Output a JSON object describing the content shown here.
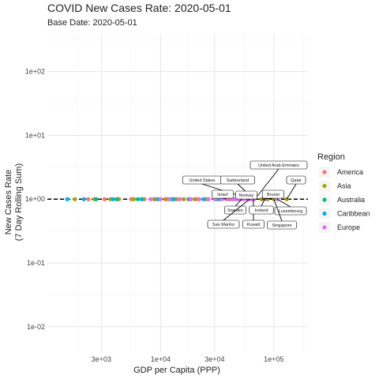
{
  "chart_data": {
    "type": "scatter",
    "title": "COVID New Cases Rate: 2020-05-01",
    "subtitle": "Base Date: 2020-05-01",
    "xlabel": "GDP per Capita (PPP)",
    "ylabel_lines": [
      "New Cases Rate",
      "(7 Day Rolling Sum)"
    ],
    "x_scale": "log",
    "y_scale": "log",
    "xlim": [
      1000,
      200000
    ],
    "ylim": [
      0.004,
      400
    ],
    "x_ticks": [
      {
        "value": 3000,
        "label": "3e+03"
      },
      {
        "value": 10000,
        "label": "1e+04"
      },
      {
        "value": 30000,
        "label": "3e+04"
      },
      {
        "value": 100000,
        "label": "1e+05"
      }
    ],
    "y_ticks": [
      {
        "value": 100,
        "label": "1e+02"
      },
      {
        "value": 10,
        "label": "1e+01"
      },
      {
        "value": 1,
        "label": "1e+00"
      },
      {
        "value": 0.1,
        "label": "1e-01"
      },
      {
        "value": 0.01,
        "label": "1e-02"
      }
    ],
    "grid": true,
    "reference_line": {
      "y": 1,
      "style": "dashed"
    },
    "legend": {
      "title": "Region",
      "position": "right",
      "items": [
        {
          "name": "America",
          "color": "#F8766D"
        },
        {
          "name": "Asia",
          "color": "#A3A500"
        },
        {
          "name": "Australia",
          "color": "#00BF7D"
        },
        {
          "name": "Caribbean",
          "color": "#00B0F6"
        },
        {
          "name": "Europe",
          "color": "#E76BF3"
        }
      ]
    },
    "series": [
      {
        "name": "America",
        "points": [
          {
            "x": 1500,
            "y": 1
          },
          {
            "x": 2300,
            "y": 1
          },
          {
            "x": 3200,
            "y": 1
          },
          {
            "x": 4300,
            "y": 1
          },
          {
            "x": 5500,
            "y": 1
          },
          {
            "x": 7200,
            "y": 1
          },
          {
            "x": 9000,
            "y": 1
          },
          {
            "x": 11500,
            "y": 1
          },
          {
            "x": 14000,
            "y": 1
          },
          {
            "x": 17500,
            "y": 1
          },
          {
            "x": 21000,
            "y": 1
          },
          {
            "x": 26000,
            "y": 1
          },
          {
            "x": 32000,
            "y": 1
          },
          {
            "x": 62000,
            "y": 1
          }
        ]
      },
      {
        "name": "Asia",
        "points": [
          {
            "x": 1750,
            "y": 1
          },
          {
            "x": 2600,
            "y": 1
          },
          {
            "x": 3600,
            "y": 1
          },
          {
            "x": 4200,
            "y": 1
          },
          {
            "x": 5800,
            "y": 1
          },
          {
            "x": 7000,
            "y": 1
          },
          {
            "x": 8800,
            "y": 1
          },
          {
            "x": 11000,
            "y": 1
          },
          {
            "x": 13500,
            "y": 1
          },
          {
            "x": 16000,
            "y": 1
          },
          {
            "x": 20000,
            "y": 1
          },
          {
            "x": 25000,
            "y": 1
          },
          {
            "x": 31000,
            "y": 1
          },
          {
            "x": 40000,
            "y": 1
          },
          {
            "x": 47000,
            "y": 1
          },
          {
            "x": 66000,
            "y": 1
          },
          {
            "x": 78000,
            "y": 1
          },
          {
            "x": 88000,
            "y": 1
          },
          {
            "x": 100000,
            "y": 1
          },
          {
            "x": 130000,
            "y": 1
          }
        ]
      },
      {
        "name": "Australia",
        "points": [
          {
            "x": 2700,
            "y": 1
          },
          {
            "x": 4100,
            "y": 1
          },
          {
            "x": 6300,
            "y": 1
          },
          {
            "x": 12500,
            "y": 1
          },
          {
            "x": 43000,
            "y": 1
          },
          {
            "x": 50000,
            "y": 1
          }
        ]
      },
      {
        "name": "Caribbean",
        "points": [
          {
            "x": 1500,
            "y": 1
          },
          {
            "x": 2100,
            "y": 1
          },
          {
            "x": 3800,
            "y": 1
          },
          {
            "x": 6800,
            "y": 1
          },
          {
            "x": 9500,
            "y": 1
          },
          {
            "x": 13000,
            "y": 1
          },
          {
            "x": 18000,
            "y": 1
          },
          {
            "x": 24000,
            "y": 1
          },
          {
            "x": 33000,
            "y": 1
          }
        ]
      },
      {
        "name": "Europe",
        "points": [
          {
            "x": 8200,
            "y": 1
          },
          {
            "x": 10000,
            "y": 1
          },
          {
            "x": 12000,
            "y": 1
          },
          {
            "x": 14800,
            "y": 1
          },
          {
            "x": 18500,
            "y": 1
          },
          {
            "x": 22000,
            "y": 1
          },
          {
            "x": 26500,
            "y": 1
          },
          {
            "x": 30000,
            "y": 1
          },
          {
            "x": 35000,
            "y": 1
          },
          {
            "x": 38000,
            "y": 1
          },
          {
            "x": 42000,
            "y": 1
          },
          {
            "x": 45000,
            "y": 1
          },
          {
            "x": 48000,
            "y": 1
          },
          {
            "x": 52000,
            "y": 1
          },
          {
            "x": 55000,
            "y": 1
          },
          {
            "x": 59000,
            "y": 1
          },
          {
            "x": 61000,
            "y": 1
          },
          {
            "x": 64000,
            "y": 1
          },
          {
            "x": 67000,
            "y": 1
          },
          {
            "x": 83000,
            "y": 1
          },
          {
            "x": 107000,
            "y": 1
          }
        ]
      }
    ],
    "annotations": [
      {
        "text": "United States",
        "x": 62000,
        "y": 1
      },
      {
        "text": "Switzerland",
        "x": 67000,
        "y": 1
      },
      {
        "text": "United Arab Emirates",
        "x": 68000,
        "y": 1
      },
      {
        "text": "Qatar",
        "x": 130000,
        "y": 1
      },
      {
        "text": "Israel",
        "x": 38000,
        "y": 1
      },
      {
        "text": "Norway",
        "x": 59000,
        "y": 1
      },
      {
        "text": "Brunei",
        "x": 78000,
        "y": 1
      },
      {
        "text": "Sweden",
        "x": 52000,
        "y": 1
      },
      {
        "text": "Luxembourg",
        "x": 107000,
        "y": 1
      },
      {
        "text": "San Marino",
        "x": 61000,
        "y": 1
      },
      {
        "text": "Kuwait",
        "x": 66000,
        "y": 1
      },
      {
        "text": "Ireland",
        "x": 83000,
        "y": 1
      },
      {
        "text": "Singapore",
        "x": 100000,
        "y": 1
      }
    ]
  }
}
